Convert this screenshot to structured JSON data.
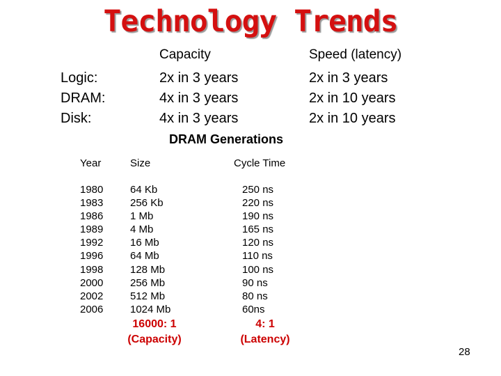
{
  "title": "Technology Trends",
  "trends": {
    "headers": {
      "capacity": "Capacity",
      "speed": "Speed (latency)"
    },
    "rows": [
      {
        "label": "Logic:",
        "capacity": "2x in 3 years",
        "speed": "2x in 3 years"
      },
      {
        "label": "DRAM:",
        "capacity": "4x in 3 years",
        "speed": "2x in 10 years"
      },
      {
        "label": "Disk:",
        "capacity": "4x in 3 years",
        "speed": "2x in 10 years"
      }
    ]
  },
  "dram": {
    "title": "DRAM Generations",
    "headers": {
      "year": "Year",
      "size": "Size",
      "cycle": "Cycle Time"
    },
    "years": [
      "1980",
      "1983",
      "1986",
      "1989",
      "1992",
      "1996",
      "1998",
      "2000",
      "2002",
      "2006"
    ],
    "sizes": [
      "64 Kb",
      "256 Kb",
      "1 Mb",
      "4 Mb",
      "16 Mb",
      "64 Mb",
      "128 Mb",
      "256 Mb",
      "512 Mb",
      "1024 Mb"
    ],
    "cycles": [
      "250 ns",
      "220 ns",
      "190 ns",
      "165 ns",
      "120 ns",
      "110 ns",
      "100 ns",
      "90 ns",
      "80 ns",
      "60ns"
    ],
    "capacity_ratio": "16000: 1",
    "capacity_note": "(Capacity)",
    "latency_ratio": "4: 1",
    "latency_note": "(Latency)"
  },
  "page_number": "28"
}
